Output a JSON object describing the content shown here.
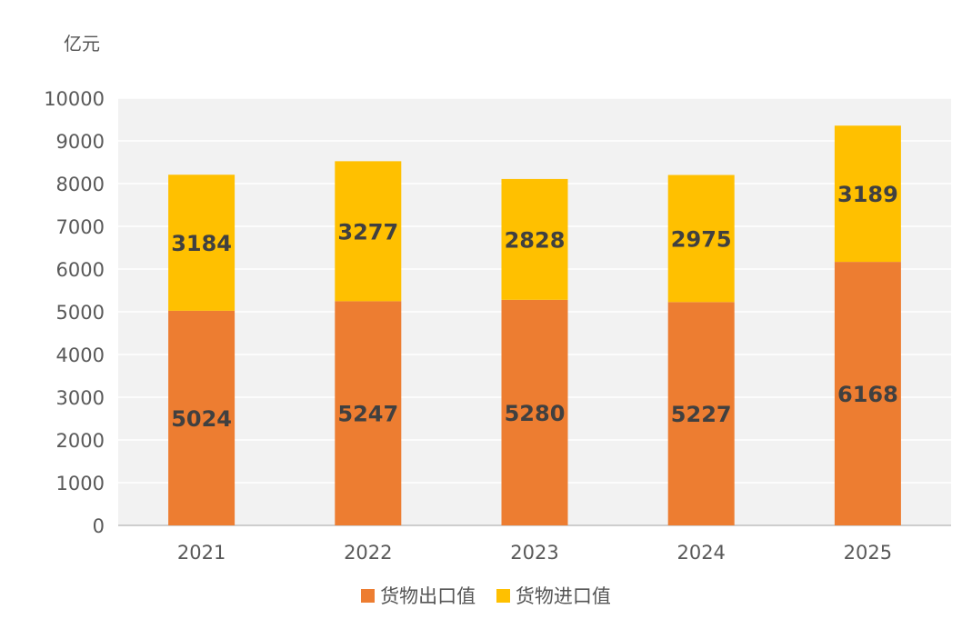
{
  "chart_data": {
    "type": "bar",
    "stacked": true,
    "unit_label": "亿元",
    "categories": [
      "2021",
      "2022",
      "2023",
      "2024",
      "2025"
    ],
    "series": [
      {
        "name": "货物出口值",
        "color": "#ED7D31",
        "values": [
          5024,
          5247,
          5280,
          5227,
          6168
        ]
      },
      {
        "name": "货物进口值",
        "color": "#FFC000",
        "values": [
          3184,
          3277,
          2828,
          2975,
          3189
        ]
      }
    ],
    "ylim": [
      0,
      10000
    ],
    "yticks": [
      "0",
      "1000",
      "2000",
      "3000",
      "4000",
      "5000",
      "6000",
      "7000",
      "8000",
      "9000",
      "10000"
    ],
    "grid": true,
    "legend_position": "bottom",
    "plot_background": "#F2F2F2",
    "data_label_color": "#404040"
  }
}
